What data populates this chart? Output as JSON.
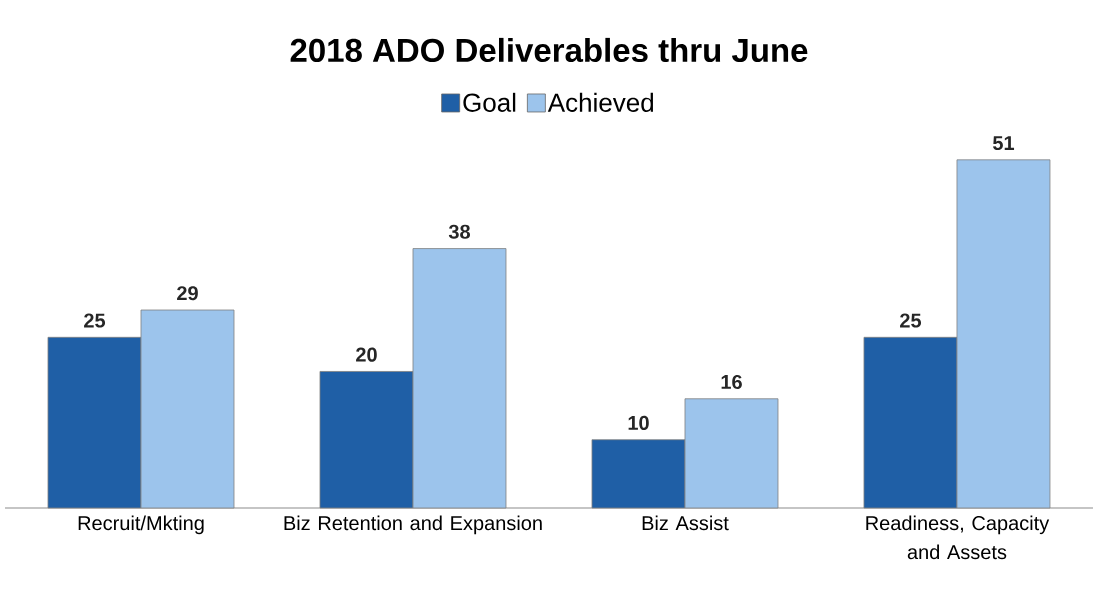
{
  "chart_data": {
    "type": "bar",
    "title": "2018 ADO Deliverables thru June",
    "categories": [
      "Recruit/Mkting",
      "Biz Retention and Expansion",
      "Biz Assist",
      "Readiness, Capacity and Assets"
    ],
    "series": [
      {
        "name": "Goal",
        "color": "#1f5fa6",
        "values": [
          25,
          20,
          10,
          25
        ]
      },
      {
        "name": "Achieved",
        "color": "#9cc4ec",
        "values": [
          29,
          38,
          16,
          51
        ]
      }
    ],
    "data_labels": true,
    "legend": "top"
  }
}
